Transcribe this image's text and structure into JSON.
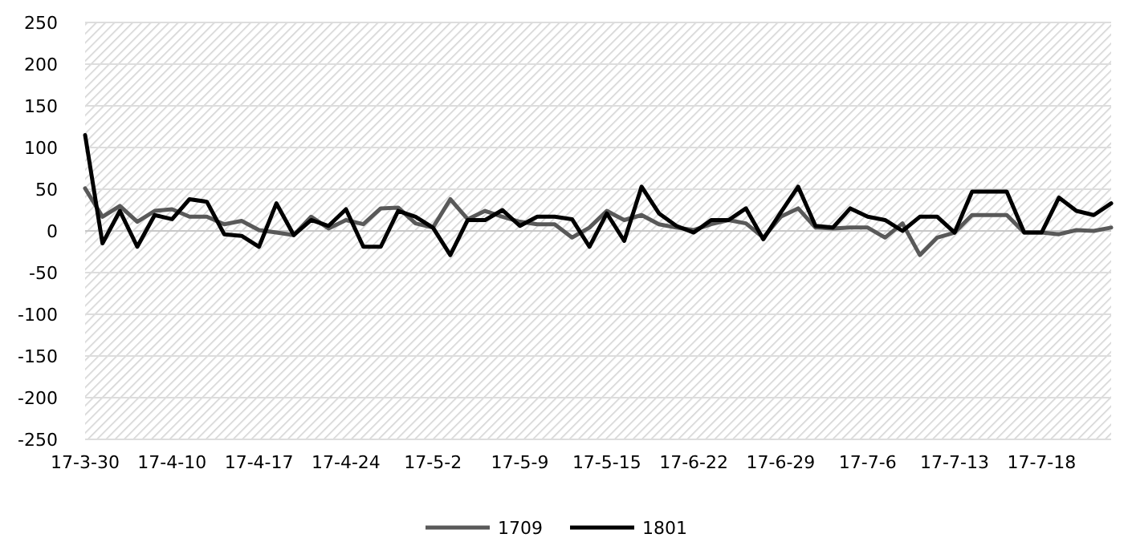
{
  "chart_data": {
    "type": "line",
    "categories": [
      "17-3-30",
      null,
      null,
      null,
      null,
      "17-4-10",
      null,
      null,
      null,
      null,
      "17-4-17",
      null,
      null,
      null,
      null,
      "17-4-24",
      null,
      null,
      null,
      null,
      "17-5-2",
      null,
      null,
      null,
      null,
      "17-5-9",
      null,
      null,
      null,
      null,
      "17-5-15",
      null,
      null,
      null,
      null,
      "17-6-22",
      null,
      null,
      null,
      null,
      "17-6-29",
      null,
      null,
      null,
      null,
      "17-7-6",
      null,
      null,
      null,
      null,
      "17-7-13",
      null,
      null,
      null,
      null,
      "17-7-18",
      null,
      null,
      null,
      null
    ],
    "series": [
      {
        "name": "1709",
        "color": "#595959",
        "values": [
          51,
          17,
          30,
          11,
          24,
          26,
          17,
          17,
          8,
          12,
          1,
          -2,
          -5,
          17,
          3,
          13,
          8,
          27,
          28,
          9,
          4,
          38,
          14,
          24,
          17,
          11,
          8,
          8,
          -8,
          4,
          24,
          13,
          19,
          8,
          4,
          1,
          8,
          13,
          9,
          -8,
          17,
          27,
          4,
          3,
          4,
          4,
          -8,
          9,
          -29,
          -8,
          -2,
          19,
          19,
          19,
          -2,
          -2,
          -4,
          1,
          0,
          4
        ]
      },
      {
        "name": "1801",
        "color": "#000000",
        "values": [
          115,
          -15,
          24,
          -19,
          19,
          14,
          38,
          35,
          -4,
          -6,
          -19,
          33,
          -5,
          13,
          6,
          26,
          -19,
          -19,
          24,
          17,
          4,
          -29,
          13,
          13,
          25,
          6,
          17,
          17,
          14,
          -19,
          21,
          -12,
          53,
          21,
          6,
          -2,
          13,
          13,
          27,
          -10,
          22,
          53,
          6,
          4,
          27,
          17,
          13,
          0,
          17,
          17,
          -2,
          47,
          47,
          47,
          -2,
          -2,
          40,
          24,
          19,
          33
        ]
      }
    ],
    "ylim": [
      -250,
      250
    ],
    "yticks": [
      -250,
      -200,
      -150,
      -100,
      -50,
      0,
      50,
      100,
      150,
      200,
      250
    ],
    "grid": "y",
    "legend": "bottom",
    "marker": "none",
    "line_style": "solid"
  }
}
